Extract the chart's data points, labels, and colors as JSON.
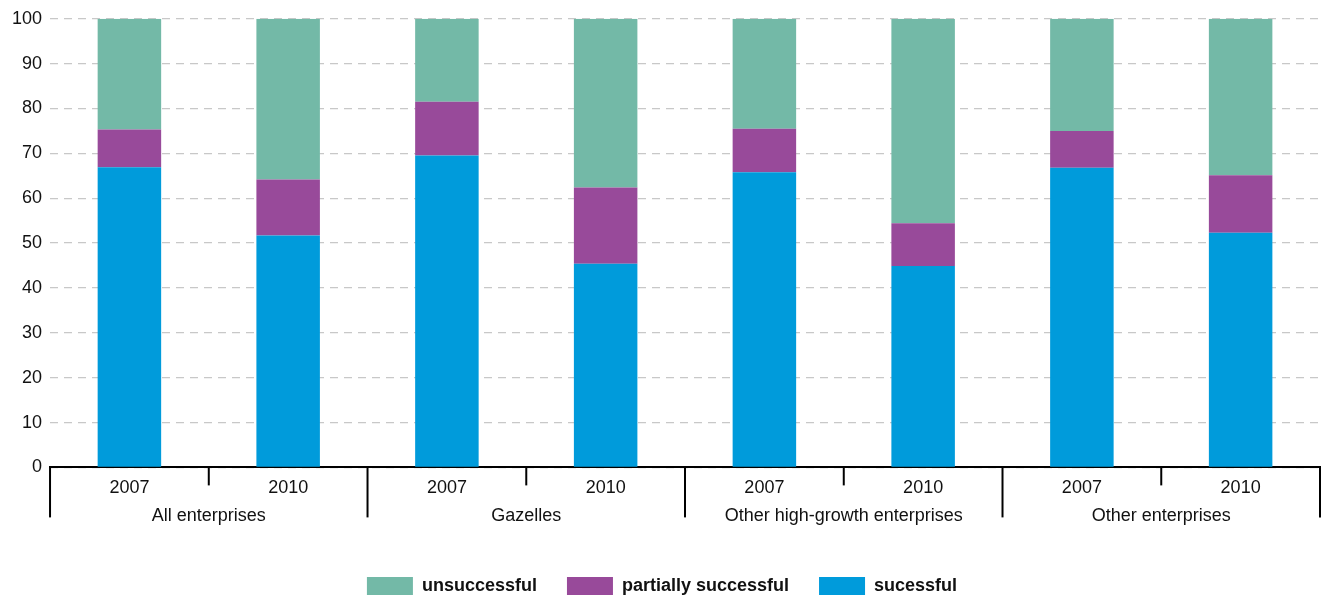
{
  "chart_data": {
    "type": "bar",
    "stacked": true,
    "categories": [
      "2007",
      "2010",
      "2007",
      "2010",
      "2007",
      "2010",
      "2007",
      "2010"
    ],
    "annotations": [
      "All enterprises",
      "Gazelles",
      "Other high-growth enterprises",
      "Other enterprises"
    ],
    "series": [
      {
        "name": "sucessful",
        "color": "#009bdb",
        "values": [
          66.9,
          51.7,
          69.5,
          45.4,
          65.8,
          44.9,
          66.8,
          52.3
        ]
      },
      {
        "name": "partially successful",
        "color": "#984a9a",
        "values": [
          8.4,
          12.5,
          12.0,
          17.0,
          9.7,
          9.5,
          8.2,
          12.8
        ]
      },
      {
        "name": "unsuccessful",
        "color": "#73b9a7",
        "values": [
          24.7,
          35.8,
          18.5,
          37.6,
          24.5,
          45.6,
          25.0,
          34.9
        ]
      }
    ],
    "ylim": [
      0,
      100
    ],
    "yticks": [
      0,
      10,
      20,
      30,
      40,
      50,
      60,
      70,
      80,
      90,
      100
    ],
    "grid": "y",
    "legend": "bottom"
  }
}
